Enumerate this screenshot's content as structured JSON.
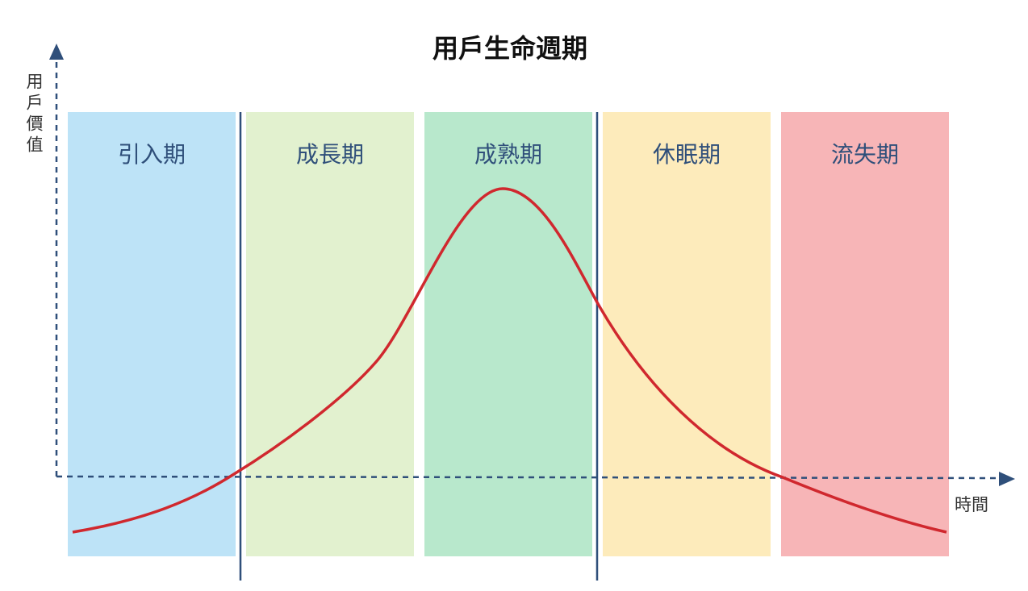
{
  "title": "用戶生命週期",
  "y_axis": {
    "label": "用戶價值"
  },
  "x_axis": {
    "label": "時間"
  },
  "stages": [
    {
      "label": "引入期"
    },
    {
      "label": "成長期"
    },
    {
      "label": "成熟期"
    },
    {
      "label": "休眠期"
    },
    {
      "label": "流失期"
    }
  ]
}
